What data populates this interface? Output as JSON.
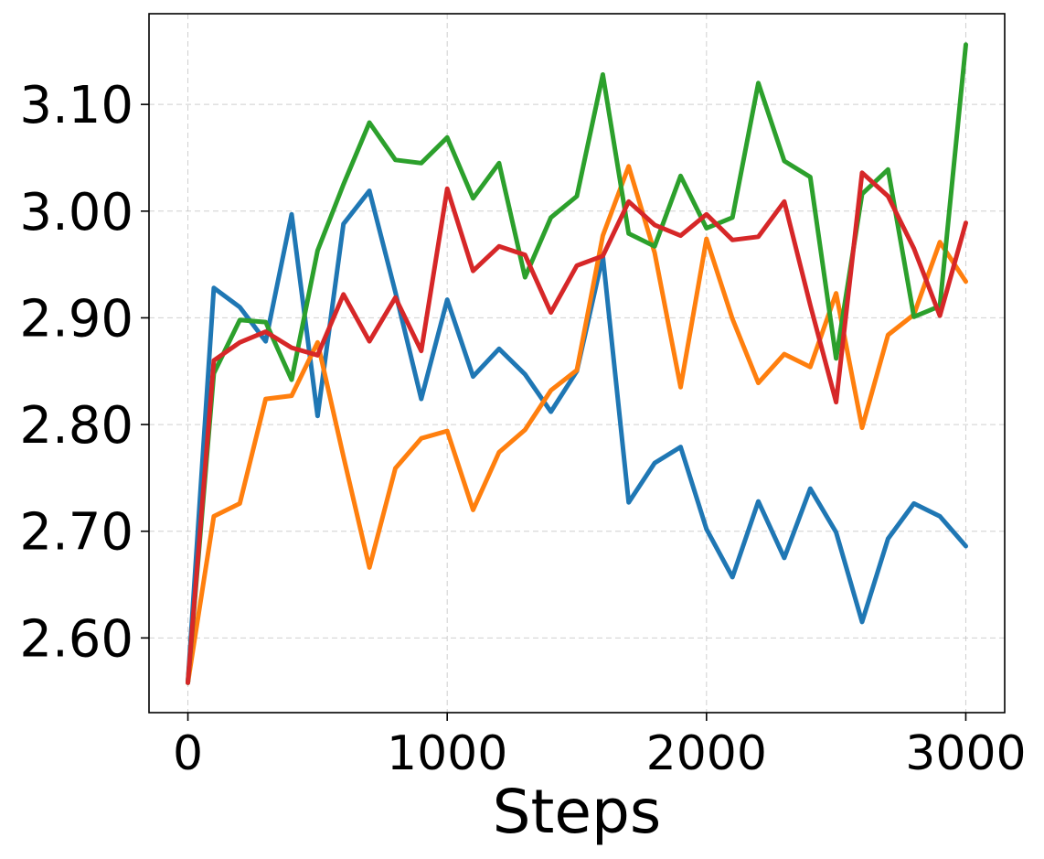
{
  "chart_data": {
    "type": "line",
    "title": "",
    "xlabel": "Steps",
    "ylabel": "",
    "xlim": [
      -150,
      3150
    ],
    "ylim": [
      2.53,
      3.185
    ],
    "x_ticks": [
      0,
      1000,
      2000,
      3000
    ],
    "x_tick_labels": [
      "0",
      "1000",
      "2000",
      "3000"
    ],
    "y_ticks": [
      2.6,
      2.7,
      2.8,
      2.9,
      3.0,
      3.1
    ],
    "y_tick_labels": [
      "2.60",
      "2.70",
      "2.80",
      "2.90",
      "3.00",
      "3.10"
    ],
    "grid": true,
    "legend": false,
    "x": [
      0,
      100,
      200,
      300,
      400,
      500,
      600,
      700,
      800,
      900,
      1000,
      1100,
      1200,
      1300,
      1400,
      1500,
      1600,
      1700,
      1800,
      1900,
      2000,
      2100,
      2200,
      2300,
      2400,
      2500,
      2600,
      2700,
      2800,
      2900,
      3000
    ],
    "series": [
      {
        "color": "#1f77b4",
        "values": [
          2.558,
          2.928,
          2.91,
          2.878,
          2.997,
          2.808,
          2.988,
          3.019,
          2.924,
          2.824,
          2.917,
          2.845,
          2.871,
          2.847,
          2.812,
          2.85,
          2.958,
          2.727,
          2.764,
          2.779,
          2.702,
          2.657,
          2.728,
          2.675,
          2.74,
          2.699,
          2.615,
          2.693,
          2.726,
          2.714,
          2.686
        ]
      },
      {
        "color": "#ff7f0e",
        "values": [
          2.558,
          2.714,
          2.726,
          2.824,
          2.827,
          2.877,
          2.77,
          2.666,
          2.759,
          2.787,
          2.794,
          2.72,
          2.774,
          2.795,
          2.832,
          2.851,
          2.977,
          3.042,
          2.961,
          2.835,
          2.974,
          2.899,
          2.839,
          2.866,
          2.854,
          2.923,
          2.797,
          2.884,
          2.903,
          2.971,
          2.934
        ]
      },
      {
        "color": "#2ca02c",
        "values": [
          2.558,
          2.848,
          2.898,
          2.896,
          2.842,
          2.963,
          3.025,
          3.083,
          3.048,
          3.045,
          3.069,
          3.012,
          3.045,
          2.938,
          2.994,
          3.014,
          3.128,
          2.979,
          2.967,
          3.033,
          2.984,
          2.994,
          3.12,
          3.047,
          3.032,
          2.862,
          3.016,
          3.039,
          2.901,
          2.911,
          3.156
        ]
      },
      {
        "color": "#d62728",
        "values": [
          2.558,
          2.86,
          2.877,
          2.887,
          2.872,
          2.865,
          2.922,
          2.878,
          2.919,
          2.869,
          3.021,
          2.944,
          2.967,
          2.959,
          2.905,
          2.949,
          2.958,
          3.009,
          2.987,
          2.977,
          2.997,
          2.973,
          2.976,
          3.009,
          2.912,
          2.821,
          3.036,
          3.014,
          2.965,
          2.902,
          2.989
        ]
      }
    ]
  }
}
